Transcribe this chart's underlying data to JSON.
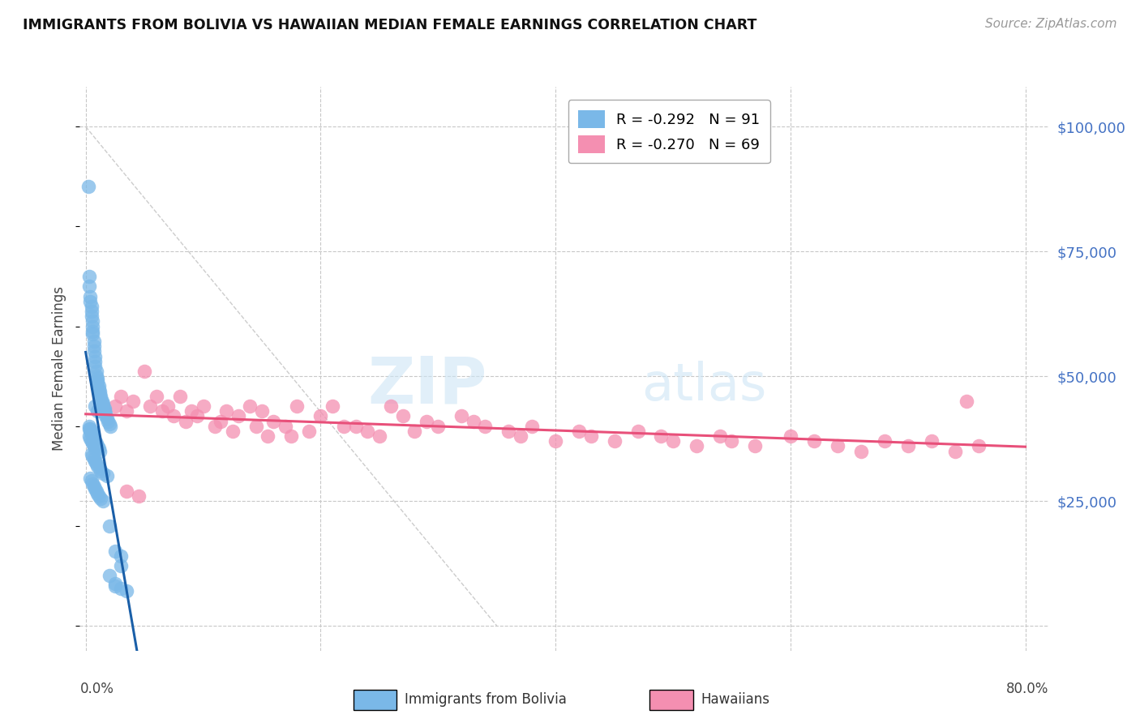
{
  "title": "IMMIGRANTS FROM BOLIVIA VS HAWAIIAN MEDIAN FEMALE EARNINGS CORRELATION CHART",
  "source": "Source: ZipAtlas.com",
  "ylabel": "Median Female Earnings",
  "legend_entries": [
    {
      "label": "R = -0.292   N = 91",
      "color": "#7ab8e8"
    },
    {
      "label": "R = -0.270   N = 69",
      "color": "#f48fb1"
    }
  ],
  "y_ticks": [
    0,
    25000,
    50000,
    75000,
    100000
  ],
  "ylim": [
    -5000,
    108000
  ],
  "xlim": [
    -0.005,
    0.82
  ],
  "watermark_zip": "ZIP",
  "watermark_atlas": "atlas",
  "bolivia_color": "#7ab8e8",
  "hawaii_color": "#f48fb1",
  "bolivia_line_color": "#1a5fa8",
  "hawaii_line_color": "#e8507a",
  "grid_color": "#c8c8c8",
  "right_label_color": "#4472c4",
  "bolivia_scatter_x": [
    0.002,
    0.003,
    0.003,
    0.004,
    0.004,
    0.005,
    0.005,
    0.005,
    0.006,
    0.006,
    0.006,
    0.006,
    0.007,
    0.007,
    0.007,
    0.008,
    0.008,
    0.008,
    0.009,
    0.009,
    0.01,
    0.01,
    0.01,
    0.011,
    0.011,
    0.012,
    0.012,
    0.013,
    0.013,
    0.014,
    0.015,
    0.015,
    0.016,
    0.016,
    0.017,
    0.017,
    0.018,
    0.019,
    0.02,
    0.021,
    0.003,
    0.004,
    0.005,
    0.006,
    0.007,
    0.008,
    0.009,
    0.01,
    0.011,
    0.012,
    0.005,
    0.006,
    0.007,
    0.008,
    0.009,
    0.01,
    0.012,
    0.013,
    0.015,
    0.018,
    0.004,
    0.005,
    0.006,
    0.007,
    0.008,
    0.009,
    0.01,
    0.011,
    0.013,
    0.015,
    0.003,
    0.004,
    0.005,
    0.006,
    0.007,
    0.008,
    0.003,
    0.004,
    0.005,
    0.006,
    0.02,
    0.025,
    0.03,
    0.02,
    0.025,
    0.03,
    0.025,
    0.03,
    0.035,
    0.008,
    0.01
  ],
  "bolivia_scatter_y": [
    88000,
    70000,
    68000,
    66000,
    65000,
    64000,
    63000,
    62000,
    61000,
    60000,
    59000,
    58500,
    57000,
    56000,
    55000,
    54000,
    53000,
    52000,
    51000,
    50000,
    49500,
    49000,
    48500,
    48000,
    47500,
    47000,
    46500,
    46000,
    45500,
    45000,
    44500,
    44000,
    43500,
    43000,
    42500,
    42000,
    41500,
    41000,
    40500,
    40000,
    39500,
    39000,
    38500,
    38000,
    37500,
    37000,
    36500,
    36000,
    35500,
    35000,
    34500,
    34000,
    33500,
    33000,
    32500,
    32000,
    31500,
    31000,
    30500,
    30000,
    29500,
    29000,
    28500,
    28000,
    27500,
    27000,
    26500,
    26000,
    25500,
    25000,
    38000,
    37500,
    37000,
    36500,
    36000,
    35500,
    40000,
    39500,
    39000,
    38500,
    20000,
    15000,
    12000,
    10000,
    8500,
    14000,
    8000,
    7500,
    7000,
    44000,
    43000
  ],
  "hawaii_scatter_x": [
    0.025,
    0.03,
    0.035,
    0.04,
    0.05,
    0.055,
    0.06,
    0.065,
    0.07,
    0.075,
    0.08,
    0.085,
    0.09,
    0.095,
    0.1,
    0.11,
    0.115,
    0.12,
    0.125,
    0.13,
    0.14,
    0.145,
    0.15,
    0.155,
    0.16,
    0.17,
    0.175,
    0.18,
    0.19,
    0.2,
    0.21,
    0.22,
    0.23,
    0.24,
    0.25,
    0.26,
    0.27,
    0.28,
    0.29,
    0.3,
    0.32,
    0.33,
    0.34,
    0.36,
    0.37,
    0.38,
    0.4,
    0.42,
    0.43,
    0.45,
    0.47,
    0.49,
    0.5,
    0.52,
    0.54,
    0.55,
    0.57,
    0.6,
    0.62,
    0.64,
    0.66,
    0.68,
    0.7,
    0.72,
    0.74,
    0.76,
    0.75,
    0.035,
    0.045
  ],
  "hawaii_scatter_y": [
    44000,
    46000,
    43000,
    45000,
    51000,
    44000,
    46000,
    43000,
    44000,
    42000,
    46000,
    41000,
    43000,
    42000,
    44000,
    40000,
    41000,
    43000,
    39000,
    42000,
    44000,
    40000,
    43000,
    38000,
    41000,
    40000,
    38000,
    44000,
    39000,
    42000,
    44000,
    40000,
    40000,
    39000,
    38000,
    44000,
    42000,
    39000,
    41000,
    40000,
    42000,
    41000,
    40000,
    39000,
    38000,
    40000,
    37000,
    39000,
    38000,
    37000,
    39000,
    38000,
    37000,
    36000,
    38000,
    37000,
    36000,
    38000,
    37000,
    36000,
    35000,
    37000,
    36000,
    37000,
    35000,
    36000,
    45000,
    27000,
    26000
  ]
}
